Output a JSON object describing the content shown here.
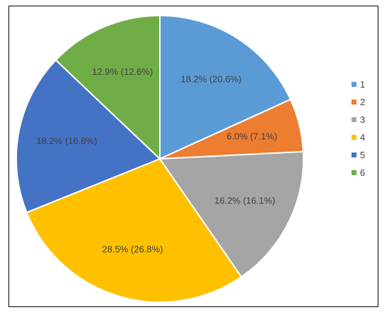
{
  "chart_data": {
    "type": "pie",
    "categories": [
      "1",
      "2",
      "3",
      "4",
      "5",
      "6"
    ],
    "values": [
      18.2,
      6.0,
      16.2,
      28.5,
      18.2,
      12.9
    ],
    "labels": [
      "18.2% (20.6%)",
      "6.0% (7.1%)",
      "16.2% (16.1%)",
      "28.5% (26.8%)",
      "18.2% (16.8%)",
      "12.9% (12.6%)"
    ],
    "colors": [
      "#5B9BD5",
      "#ED7D31",
      "#A5A5A5",
      "#FFC000",
      "#4472C4",
      "#70AD47"
    ],
    "legend": {
      "position": "right",
      "entries": [
        "1",
        "2",
        "3",
        "4",
        "5",
        "6"
      ]
    },
    "start": "12 o'clock",
    "direction": "clockwise"
  }
}
